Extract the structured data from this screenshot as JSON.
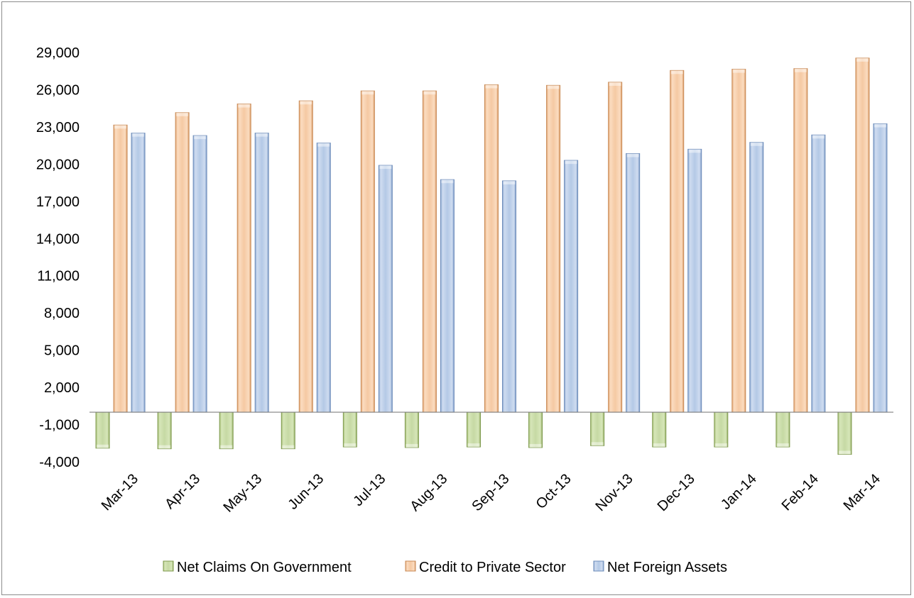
{
  "chart_data": {
    "type": "bar",
    "title": "",
    "xlabel": "",
    "ylabel": "",
    "ylim": [
      -4000,
      29000
    ],
    "yticks": [
      29000,
      26000,
      23000,
      20000,
      17000,
      14000,
      11000,
      8000,
      5000,
      2000,
      -1000,
      -4000
    ],
    "ytick_labels": [
      "29,000",
      "26,000",
      "23,000",
      "20,000",
      "17,000",
      "14,000",
      "11,000",
      "8,000",
      "5,000",
      "2,000",
      "-1,000",
      "-4,000"
    ],
    "grid": false,
    "legend_position": "bottom",
    "categories": [
      "Mar-13",
      "Apr-13",
      "May-13",
      "Jun-13",
      "Jul-13",
      "Aug-13",
      "Sep-13",
      "Oct-13",
      "Nov-13",
      "Dec-13",
      "Jan-14",
      "Feb-14",
      "Mar-14"
    ],
    "series": [
      {
        "name": "Net Claims On Government",
        "color": "#c6d9a4",
        "values": [
          -2900,
          -2950,
          -2950,
          -2950,
          -2800,
          -2850,
          -2800,
          -2850,
          -2700,
          -2800,
          -2800,
          -2800,
          -3400
        ]
      },
      {
        "name": "Credit to Private Sector",
        "color": "#f5c9a3",
        "values": [
          23150,
          24150,
          24850,
          25100,
          25900,
          25900,
          26400,
          26350,
          26600,
          27550,
          27650,
          27700,
          28550
        ]
      },
      {
        "name": "Net Foreign Assets",
        "color": "#b4c9e6",
        "values": [
          22500,
          22300,
          22500,
          21700,
          19900,
          18750,
          18650,
          20300,
          20850,
          21200,
          21750,
          22350,
          23250
        ]
      }
    ]
  }
}
